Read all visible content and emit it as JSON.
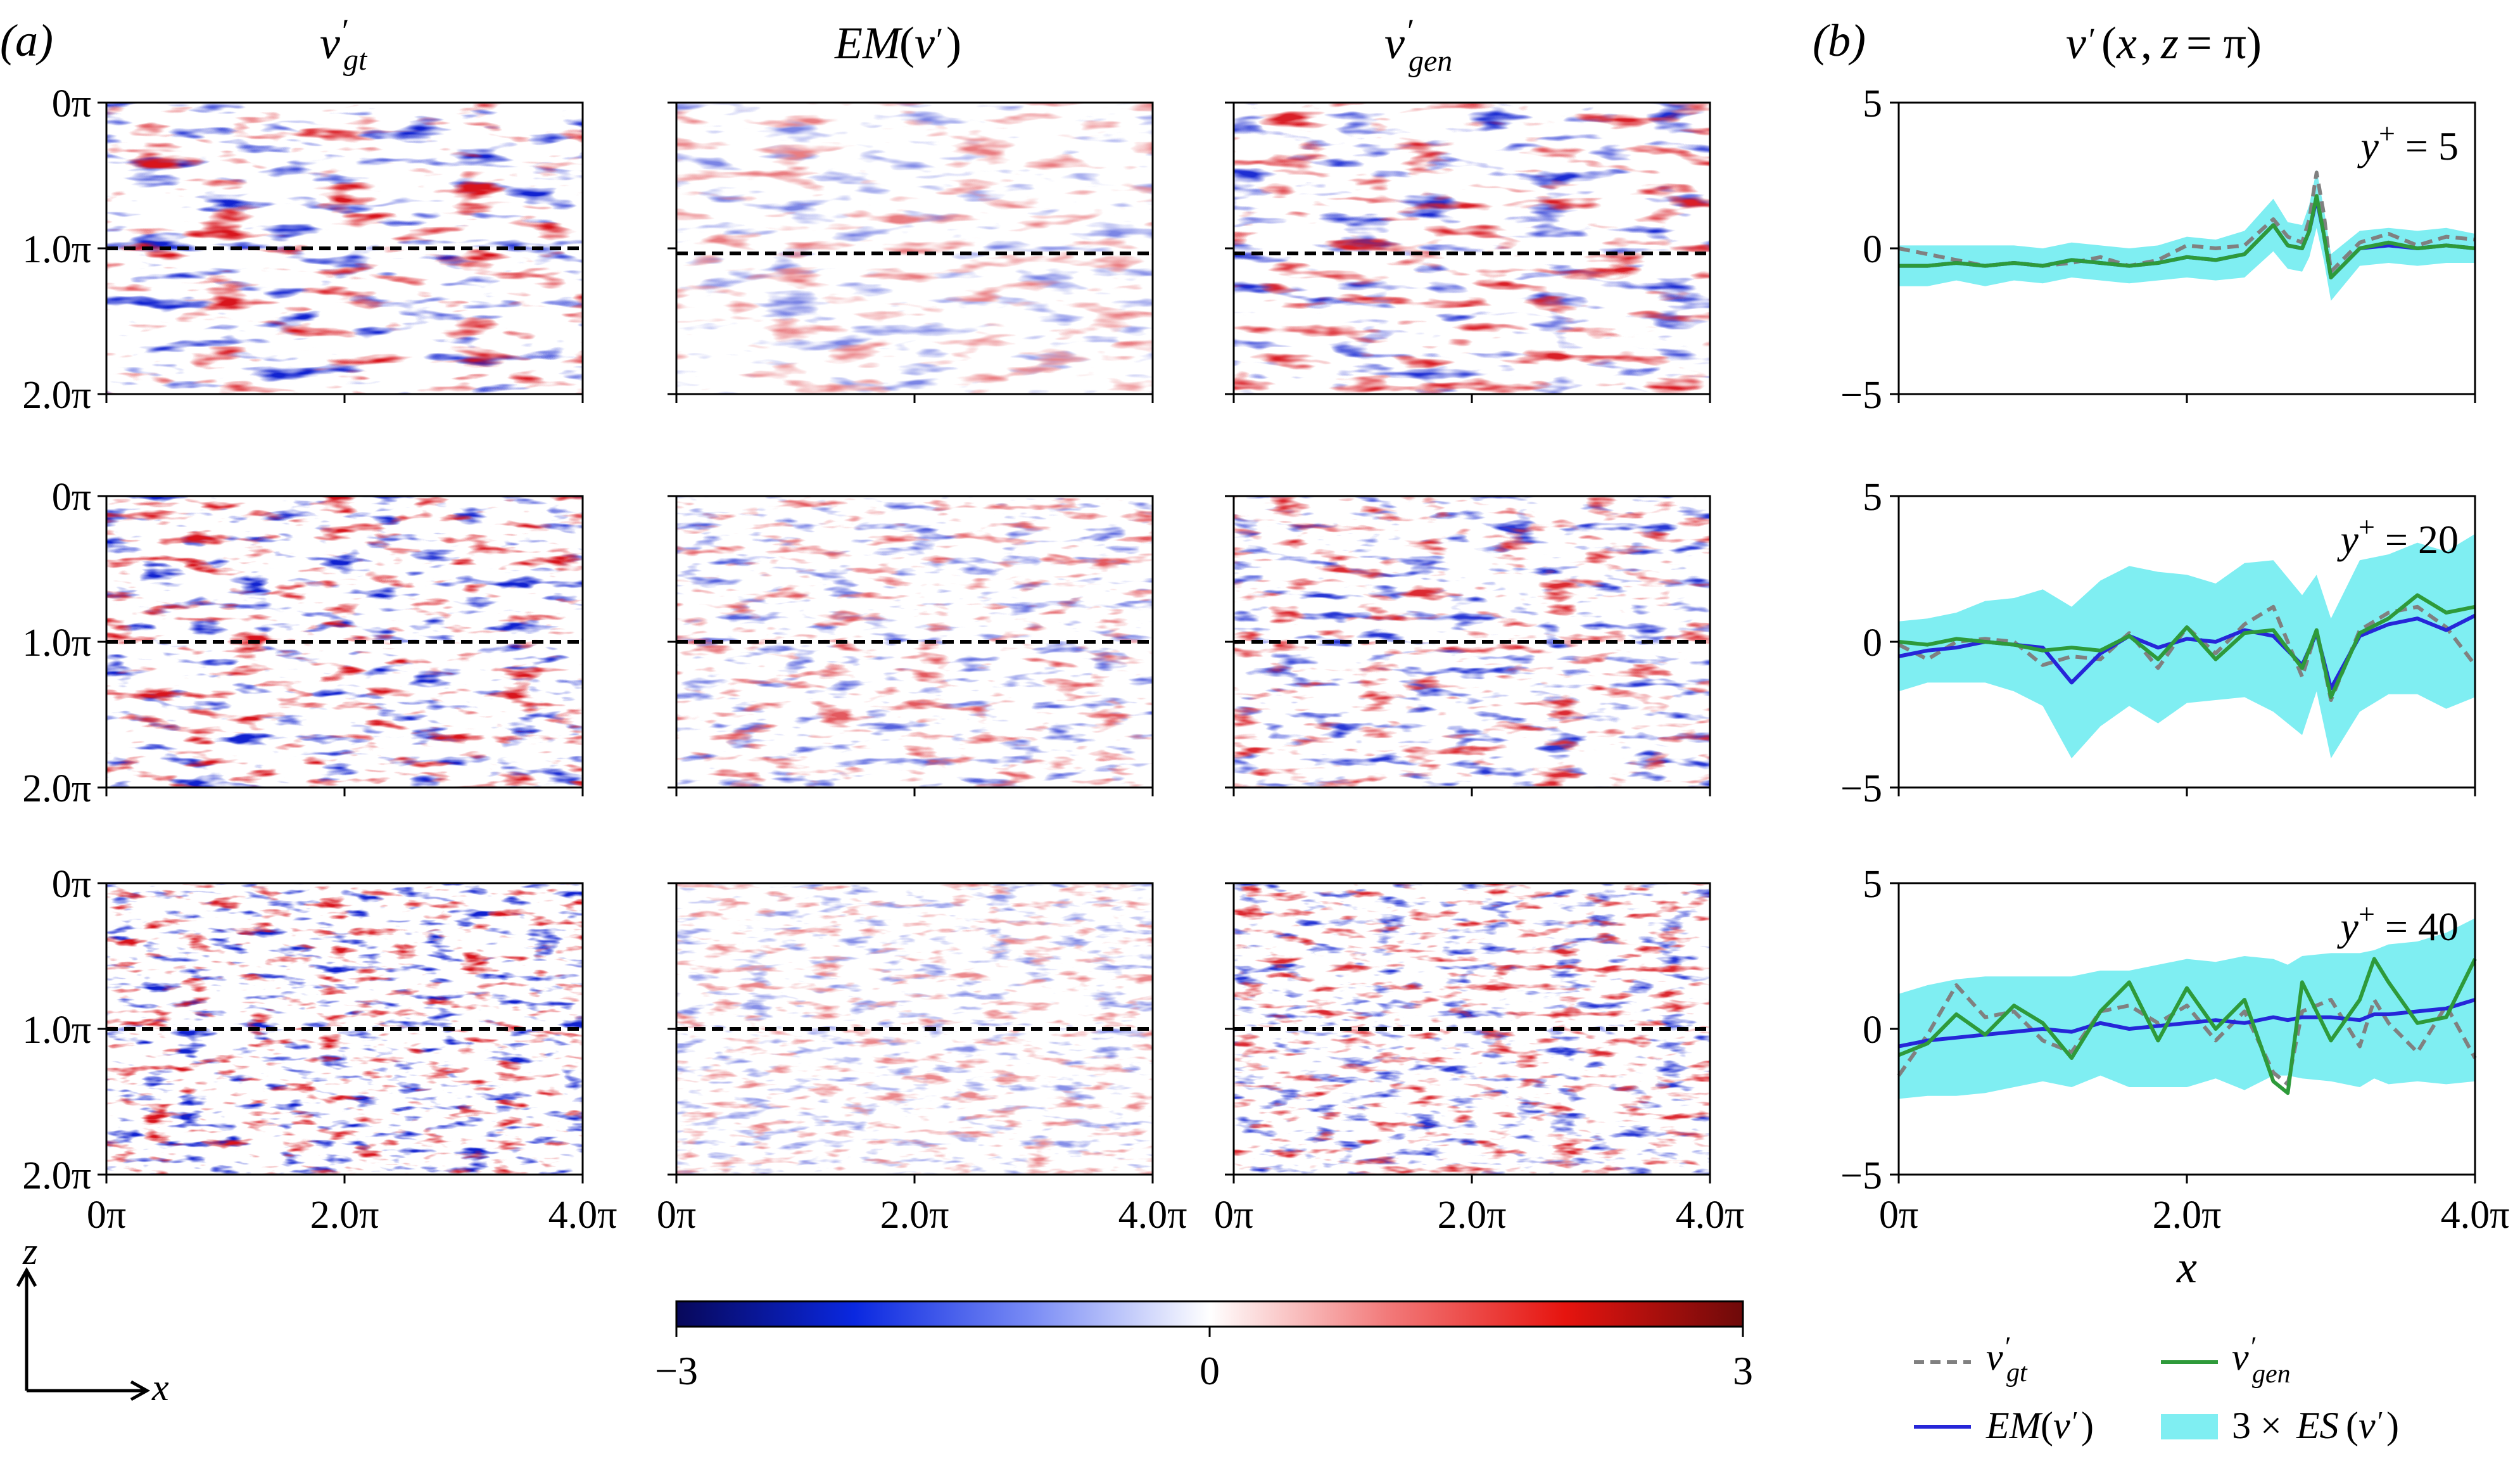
{
  "figure": {
    "panel_a_label": "(a)",
    "panel_b_label": "(b)",
    "columns": [
      {
        "label": "v′gt"
      },
      {
        "label": "EM(v′)"
      },
      {
        "label": "v′gen"
      }
    ],
    "panel_b_title": "v′(x, z = π)",
    "z_tick_labels": [
      "0π",
      "1.0π",
      "2.0π"
    ],
    "x_tick_labels": [
      "0π",
      "2.0π",
      "4.0π"
    ],
    "axis_arrows": {
      "z": "z",
      "x": "x"
    },
    "colorbar": {
      "min_label": "−3",
      "mid_label": "0",
      "max_label": "3",
      "colors": [
        "#08085a",
        "#0a28e0",
        "#7a8cf5",
        "#ffffff",
        "#f27a7a",
        "#e6140f",
        "#6e0a0a"
      ]
    },
    "field_colors": {
      "negative": "#1022d0",
      "positive": "#d8141c",
      "neutral": "#ffffff"
    },
    "legend": {
      "gt": "v′gt",
      "gen": "v′gen",
      "em": "EM(v′)",
      "es": "3 × ES(v′)"
    },
    "series_colors": {
      "gt": "#808080",
      "gen": "#2e9a3a",
      "em": "#2626d8",
      "es": "#7feef2"
    }
  },
  "chart_data": [
    {
      "type": "line",
      "panel": "(b)",
      "annotation": "y+ = 5",
      "xlabel": "",
      "ylabel": "",
      "xlim": [
        0,
        4
      ],
      "ylim": [
        -5,
        5
      ],
      "x_unit": "π",
      "yticks": [
        -5,
        0,
        5
      ],
      "x": [
        0,
        0.2,
        0.4,
        0.6,
        0.8,
        1.0,
        1.2,
        1.4,
        1.6,
        1.8,
        2.0,
        2.2,
        2.4,
        2.6,
        2.7,
        2.8,
        2.85,
        2.9,
        2.95,
        3.0,
        3.2,
        3.4,
        3.6,
        3.8,
        4.0
      ],
      "series": [
        {
          "name": "v′gt",
          "style": "dashed",
          "values": [
            0.0,
            -0.2,
            -0.4,
            -0.6,
            -0.5,
            -0.6,
            -0.5,
            -0.3,
            -0.6,
            -0.4,
            0.1,
            0.0,
            0.1,
            1.0,
            0.4,
            0.2,
            1.0,
            2.6,
            1.2,
            -0.8,
            0.2,
            0.5,
            0.1,
            0.4,
            0.3
          ]
        },
        {
          "name": "EM(v′)",
          "style": "solid",
          "values": [
            -0.6,
            -0.6,
            -0.5,
            -0.6,
            -0.5,
            -0.6,
            -0.4,
            -0.5,
            -0.6,
            -0.5,
            -0.3,
            -0.4,
            -0.2,
            0.8,
            0.1,
            0.0,
            0.6,
            1.7,
            0.5,
            -1.0,
            0.0,
            0.1,
            0.0,
            0.1,
            0.0
          ]
        },
        {
          "name": "v′gen",
          "style": "solid",
          "values": [
            -0.6,
            -0.6,
            -0.5,
            -0.6,
            -0.5,
            -0.6,
            -0.4,
            -0.5,
            -0.6,
            -0.5,
            -0.3,
            -0.4,
            -0.2,
            0.8,
            0.1,
            0.0,
            0.6,
            1.8,
            0.5,
            -1.0,
            0.0,
            0.2,
            0.0,
            0.1,
            0.0
          ]
        }
      ],
      "es_band": [
        0.7,
        0.7,
        0.6,
        0.7,
        0.6,
        0.6,
        0.6,
        0.6,
        0.6,
        0.6,
        0.7,
        0.7,
        0.8,
        0.9,
        0.8,
        0.8,
        0.9,
        1.0,
        0.9,
        0.8,
        0.6,
        0.6,
        0.6,
        0.6,
        0.5
      ]
    },
    {
      "type": "line",
      "panel": "(b)",
      "annotation": "y+ = 20",
      "xlabel": "",
      "ylabel": "",
      "xlim": [
        0,
        4
      ],
      "ylim": [
        -5,
        5
      ],
      "x_unit": "π",
      "yticks": [
        -5,
        0,
        5
      ],
      "x": [
        0,
        0.2,
        0.4,
        0.6,
        0.8,
        1.0,
        1.2,
        1.4,
        1.6,
        1.8,
        2.0,
        2.2,
        2.4,
        2.6,
        2.8,
        2.9,
        3.0,
        3.2,
        3.4,
        3.6,
        3.8,
        4.0
      ],
      "series": [
        {
          "name": "v′gt",
          "style": "dashed",
          "values": [
            -0.1,
            -0.6,
            0.0,
            0.1,
            0.0,
            -0.8,
            -0.5,
            -0.6,
            0.3,
            -0.9,
            0.5,
            -0.4,
            0.6,
            1.2,
            -1.2,
            0.4,
            -2.0,
            0.4,
            1.0,
            1.2,
            0.5,
            -0.8
          ]
        },
        {
          "name": "EM(v′)",
          "style": "solid",
          "values": [
            -0.5,
            -0.3,
            -0.2,
            0.0,
            -0.1,
            -0.2,
            -1.4,
            -0.4,
            0.2,
            -0.2,
            0.1,
            0.0,
            0.4,
            0.2,
            -0.8,
            0.3,
            -1.6,
            0.2,
            0.6,
            0.8,
            0.4,
            0.9
          ]
        },
        {
          "name": "v′gen",
          "style": "solid",
          "values": [
            0.0,
            -0.1,
            0.1,
            0.0,
            -0.1,
            -0.3,
            -0.2,
            -0.3,
            0.2,
            -0.6,
            0.5,
            -0.6,
            0.3,
            0.4,
            -0.9,
            0.4,
            -1.9,
            0.3,
            0.8,
            1.6,
            1.0,
            1.2
          ]
        }
      ],
      "es_band": [
        1.2,
        1.1,
        1.2,
        1.4,
        1.6,
        2.0,
        2.6,
        2.5,
        2.4,
        2.6,
        2.2,
        2.0,
        2.3,
        2.6,
        2.4,
        2.0,
        2.4,
        2.6,
        2.4,
        2.6,
        2.7,
        2.8
      ]
    },
    {
      "type": "line",
      "panel": "(b)",
      "annotation": "y+ = 40",
      "xlabel": "x",
      "ylabel": "",
      "xlim": [
        0,
        4
      ],
      "ylim": [
        -5,
        5
      ],
      "x_unit": "π",
      "yticks": [
        -5,
        0,
        5
      ],
      "x": [
        0,
        0.2,
        0.4,
        0.6,
        0.8,
        1.0,
        1.2,
        1.4,
        1.6,
        1.8,
        2.0,
        2.2,
        2.4,
        2.6,
        2.7,
        2.8,
        3.0,
        3.2,
        3.3,
        3.4,
        3.6,
        3.8,
        4.0
      ],
      "series": [
        {
          "name": "v′gt",
          "style": "dashed",
          "values": [
            -1.6,
            -0.2,
            1.5,
            0.4,
            0.6,
            -0.4,
            -0.8,
            0.6,
            0.8,
            0.2,
            0.8,
            -0.4,
            0.6,
            -1.5,
            -1.9,
            0.6,
            1.0,
            -0.6,
            1.0,
            0.2,
            -0.8,
            0.8,
            -1.0
          ]
        },
        {
          "name": "EM(v′)",
          "style": "solid",
          "values": [
            -0.6,
            -0.4,
            -0.3,
            -0.2,
            -0.1,
            0.0,
            -0.1,
            0.2,
            0.0,
            0.1,
            0.2,
            0.3,
            0.2,
            0.4,
            0.3,
            0.4,
            0.4,
            0.3,
            0.5,
            0.5,
            0.6,
            0.7,
            1.0
          ]
        },
        {
          "name": "v′gen",
          "style": "solid",
          "values": [
            -0.9,
            -0.5,
            0.5,
            -0.2,
            0.8,
            0.2,
            -1.0,
            0.6,
            1.6,
            -0.4,
            1.4,
            0.0,
            1.0,
            -1.8,
            -2.2,
            1.6,
            -0.4,
            1.0,
            2.4,
            1.6,
            0.2,
            0.4,
            2.4
          ]
        }
      ],
      "es_band": [
        1.8,
        1.9,
        2.0,
        2.0,
        1.9,
        1.8,
        1.9,
        1.8,
        2.0,
        2.1,
        2.2,
        2.0,
        2.3,
        2.0,
        1.9,
        2.1,
        2.2,
        2.3,
        2.2,
        2.4,
        2.4,
        2.6,
        2.8
      ]
    }
  ]
}
